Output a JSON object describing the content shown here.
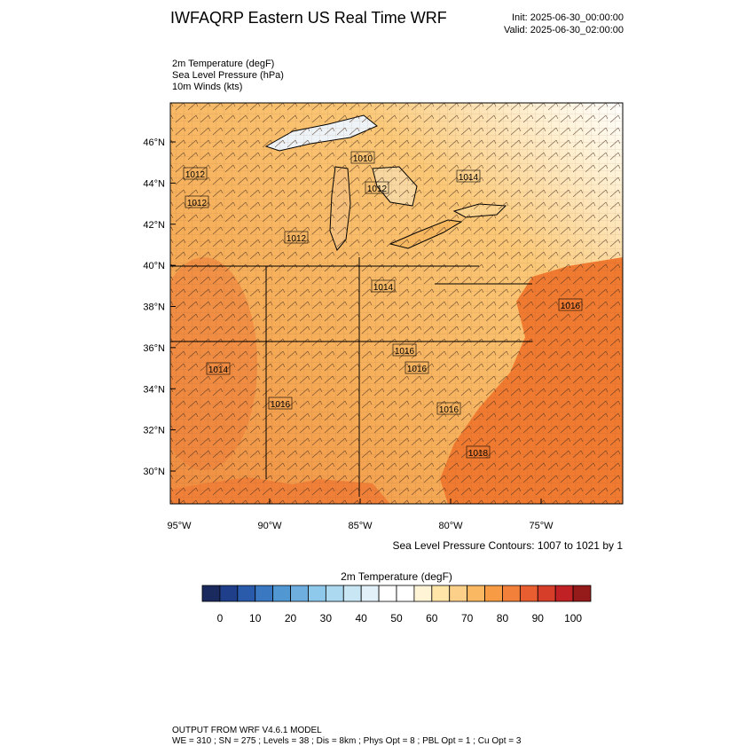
{
  "header": {
    "title": "IWFAQRP Eastern US Real Time WRF",
    "init": "Init: 2025-06-30_00:00:00",
    "valid": "Valid: 2025-06-30_02:00:00"
  },
  "fields": [
    "2m Temperature   (degF)",
    "Sea Level Pressure   (hPa)",
    "10m Winds   (kts)"
  ],
  "map": {
    "lat_ticks": [
      {
        "value": 30,
        "label": "30°N"
      },
      {
        "value": 32,
        "label": "32°N"
      },
      {
        "value": 34,
        "label": "34°N"
      },
      {
        "value": 36,
        "label": "36°N"
      },
      {
        "value": 38,
        "label": "38°N"
      },
      {
        "value": 40,
        "label": "40°N"
      },
      {
        "value": 42,
        "label": "42°N"
      },
      {
        "value": 44,
        "label": "44°N"
      },
      {
        "value": 46,
        "label": "46°N"
      }
    ],
    "lon_ticks": [
      {
        "value": -95,
        "label": "95°W"
      },
      {
        "value": -90,
        "label": "90°W"
      },
      {
        "value": -85,
        "label": "85°W"
      },
      {
        "value": -80,
        "label": "80°W"
      },
      {
        "value": -75,
        "label": "75°W"
      }
    ],
    "contour_labels": [
      "1012",
      "1012",
      "1012",
      "1010",
      "1012",
      "1014",
      "1014",
      "1016",
      "1016",
      "1014",
      "1016",
      "1016",
      "1016",
      "1018"
    ],
    "contour_note": "Sea Level Pressure Contours: 1007 to 1021 by 1"
  },
  "colorbar": {
    "title": "2m Temperature  (degF)",
    "range": [
      -5,
      105
    ],
    "colors": [
      "#1a2a5e",
      "#203f8a",
      "#2a5bab",
      "#3a78c2",
      "#5197d2",
      "#6eaede",
      "#8ec8ea",
      "#acd9f0",
      "#c9e6f5",
      "#e2f1f9",
      "#ffffff",
      "#ffffff",
      "#fff4d6",
      "#ffe6a8",
      "#fdd08a",
      "#fbb862",
      "#f79c44",
      "#f2803a",
      "#e85e30",
      "#d63e2a",
      "#bf2124",
      "#951a1a"
    ],
    "ticks": [
      0,
      10,
      20,
      30,
      40,
      50,
      60,
      70,
      80,
      90,
      100
    ]
  },
  "footer": [
    "OUTPUT FROM WRF V4.6.1 MODEL",
    "WE = 310 ; SN = 275 ; Levels = 38 ; Dis = 8km ; Phys Opt = 8 ; PBL Opt = 1 ; Cu Opt = 3"
  ]
}
